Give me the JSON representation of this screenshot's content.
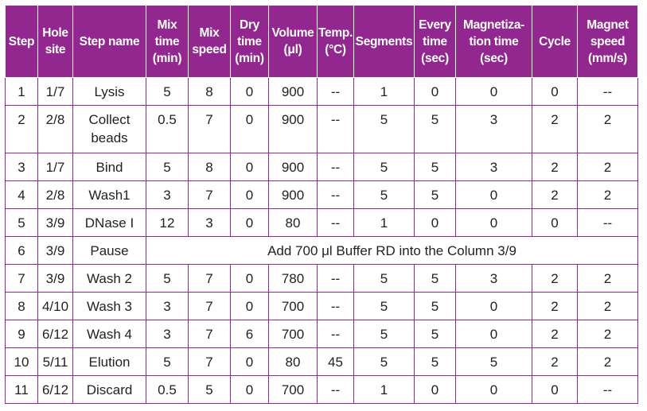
{
  "table": {
    "headers": [
      [
        "Step"
      ],
      [
        "Hole",
        "site"
      ],
      [
        "Step name"
      ],
      [
        "Mix",
        "time",
        "(min)"
      ],
      [
        "Mix",
        "speed"
      ],
      [
        "Dry",
        "time",
        "(min)"
      ],
      [
        "Volume",
        "(μl)"
      ],
      [
        "Temp.",
        "(°C)"
      ],
      [
        "Segments"
      ],
      [
        "Every",
        "time",
        "(sec)"
      ],
      [
        "Magnetiza-",
        "tion time",
        "(sec)"
      ],
      [
        "Cycle"
      ],
      [
        "Magnet",
        "speed",
        "(mm/s)"
      ]
    ],
    "rows": [
      {
        "step": "1",
        "hole": "1/7",
        "name": [
          "Lysis"
        ],
        "mix_time": "5",
        "mix_speed": "8",
        "dry_time": "0",
        "volume": "900",
        "temp": "--",
        "segments": "1",
        "every_time": "0",
        "magnetization_time": "0",
        "cycle": "0",
        "magnet_speed": "--"
      },
      {
        "step": "2",
        "hole": "2/8",
        "name": [
          "Collect",
          "beads"
        ],
        "mix_time": "0.5",
        "mix_speed": "7",
        "dry_time": "0",
        "volume": "900",
        "temp": "--",
        "segments": "5",
        "every_time": "5",
        "magnetization_time": "3",
        "cycle": "2",
        "magnet_speed": "2"
      },
      {
        "step": "3",
        "hole": "1/7",
        "name": [
          "Bind"
        ],
        "mix_time": "5",
        "mix_speed": "8",
        "dry_time": "0",
        "volume": "900",
        "temp": "--",
        "segments": "5",
        "every_time": "5",
        "magnetization_time": "3",
        "cycle": "2",
        "magnet_speed": "2"
      },
      {
        "step": "4",
        "hole": "2/8",
        "name": [
          "Wash1"
        ],
        "mix_time": "3",
        "mix_speed": "7",
        "dry_time": "0",
        "volume": "900",
        "temp": "--",
        "segments": "5",
        "every_time": "5",
        "magnetization_time": "0",
        "cycle": "2",
        "magnet_speed": "2"
      },
      {
        "step": "5",
        "hole": "3/9",
        "name": [
          "DNase I"
        ],
        "mix_time": "12",
        "mix_speed": "3",
        "dry_time": "0",
        "volume": "80",
        "temp": "--",
        "segments": "1",
        "every_time": "0",
        "magnetization_time": "0",
        "cycle": "0",
        "magnet_speed": "--"
      },
      {
        "step": "6",
        "hole": "3/9",
        "name": [
          "Pause"
        ],
        "note": "Add 700 μl Buffer RD into the Column 3/9"
      },
      {
        "step": "7",
        "hole": "3/9",
        "name": [
          "Wash 2"
        ],
        "mix_time": "5",
        "mix_speed": "7",
        "dry_time": "0",
        "volume": "780",
        "temp": "--",
        "segments": "5",
        "every_time": "5",
        "magnetization_time": "3",
        "cycle": "2",
        "magnet_speed": "2"
      },
      {
        "step": "8",
        "hole": "4/10",
        "name": [
          "Wash 3"
        ],
        "mix_time": "3",
        "mix_speed": "7",
        "dry_time": "0",
        "volume": "700",
        "temp": "--",
        "segments": "5",
        "every_time": "5",
        "magnetization_time": "0",
        "cycle": "2",
        "magnet_speed": "2"
      },
      {
        "step": "9",
        "hole": "6/12",
        "name": [
          "Wash 4"
        ],
        "mix_time": "3",
        "mix_speed": "7",
        "dry_time": "6",
        "volume": "700",
        "temp": "--",
        "segments": "5",
        "every_time": "5",
        "magnetization_time": "0",
        "cycle": "2",
        "magnet_speed": "2"
      },
      {
        "step": "10",
        "hole": "5/11",
        "name": [
          "Elution"
        ],
        "mix_time": "5",
        "mix_speed": "7",
        "dry_time": "0",
        "volume": "80",
        "temp": "45",
        "segments": "5",
        "every_time": "5",
        "magnetization_time": "5",
        "cycle": "2",
        "magnet_speed": "2"
      },
      {
        "step": "11",
        "hole": "6/12",
        "name": [
          "Discard"
        ],
        "mix_time": "0.5",
        "mix_speed": "5",
        "dry_time": "0",
        "volume": "700",
        "temp": "--",
        "segments": "1",
        "every_time": "0",
        "magnetization_time": "0",
        "cycle": "0",
        "magnet_speed": "--"
      }
    ]
  },
  "colors": {
    "header_bg": "#92278f",
    "header_text": "#ffffff",
    "border": "#92278f"
  }
}
